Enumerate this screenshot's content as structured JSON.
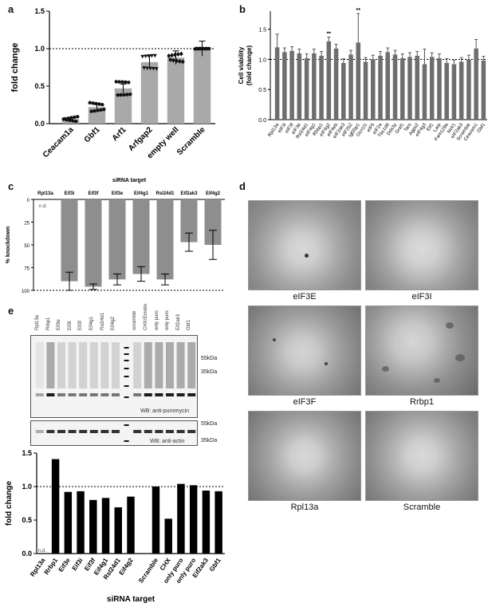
{
  "panels": {
    "a": {
      "letter": "a",
      "ylabel": "fold change",
      "ylim": [
        0,
        1.5
      ],
      "yticks": [
        "0.0",
        "0.5",
        "1.0",
        "1.5"
      ],
      "categories": [
        "Ceacam1a",
        "Gbf1",
        "Arf1",
        "Arfgap2",
        "empty well",
        "Scramble"
      ],
      "values": [
        0.06,
        0.22,
        0.47,
        0.82,
        0.88,
        1.0
      ]
    },
    "b": {
      "letter": "b",
      "ylabel1": "Cell viability",
      "ylabel2": "(fold change)",
      "ylim": [
        0,
        1.8
      ],
      "yticks": [
        "0.0",
        "0.5",
        "1.0",
        "1.5"
      ],
      "categories": [
        "Rpl13a",
        "eIF3i",
        "eIF3f",
        "eIF3e",
        "Rsl24d1",
        "eIF4g1",
        "Rbbp1",
        "eIF4g2",
        "eIF4eb",
        "eIF2ak3",
        "eIF2b2",
        "Igf2bp1",
        "Gcn1l1",
        "eIF5",
        "eIF2a",
        "Tbc1d8",
        "Ddx3y",
        "Grsf1",
        "Tars",
        "Agps2",
        "eIF4g3",
        "Eif1",
        "Larp",
        "Fam129a",
        "Nck1",
        "eIF2ak3",
        "Scramble",
        "Ceacam1",
        "Gbf1"
      ],
      "values": [
        1.2,
        1.12,
        1.14,
        1.1,
        1.02,
        1.1,
        1.06,
        1.3,
        1.18,
        0.94,
        1.08,
        1.28,
        0.96,
        1.0,
        1.06,
        1.12,
        1.08,
        1.02,
        1.04,
        1.06,
        0.92,
        1.04,
        1.02,
        0.94,
        0.92,
        0.96,
        1.0,
        1.18,
        0.98
      ],
      "stars": "**"
    },
    "c": {
      "letter": "c",
      "title": "siRNA target",
      "ylabel": "% knockdown",
      "yticks": [
        "0",
        "25",
        "50",
        "75",
        "100"
      ],
      "categories": [
        "Rpl13a",
        "Eif3i",
        "Eif3f",
        "Eif3e",
        "Eif4g1",
        "Rsl24d1",
        "Eif2ak3",
        "Eif4g2"
      ],
      "values": [
        0,
        90,
        96,
        88,
        82,
        88,
        47,
        50
      ],
      "nd": "n.d."
    },
    "d": {
      "letter": "d",
      "captions": [
        "eIF3E",
        "eIF3I",
        "eIF3F",
        "Rrbp1",
        "Rpl13a",
        "Scramble"
      ]
    },
    "e": {
      "letter": "e",
      "lanes": [
        "Rpl13a",
        "Rrbp1",
        "Eif3e",
        "Eif3i",
        "Eif3f",
        "Eif4g1",
        "Rsl24d1",
        "Eif4g2",
        "",
        "scramble",
        "CHX/Emetin",
        "only puro",
        "only puro",
        "Eif2ak3",
        "Gbf1"
      ],
      "blot1_label": "WB: anti-puromycin",
      "blot2_label": "WB: anti-actin",
      "kda": [
        "55kDa",
        "35kDa",
        "55kDa",
        "35kDa"
      ],
      "ylabel": "fold change",
      "xlabel": "siRNA target",
      "yticks": [
        "0.0",
        "0.5",
        "1.0",
        "1.5"
      ],
      "categories": [
        "Rpl13a",
        "Rrbp1",
        "Eif3e",
        "Eif3i",
        "Eif3f",
        "Eif4g1",
        "Rsl24d1",
        "Eif4g2",
        "Scramble",
        "CHX",
        "only puro",
        "only puro",
        "Eif2ak3",
        "Gbf1"
      ],
      "values": [
        0,
        1.41,
        0.92,
        0.93,
        0.8,
        0.83,
        0.69,
        0.85,
        1.0,
        0.52,
        1.04,
        1.02,
        0.94,
        0.93
      ],
      "nd": "n.d."
    }
  },
  "chart_data": [
    {
      "type": "bar",
      "categories": [
        "Ceacam1a",
        "Gbf1",
        "Arf1",
        "Arfgap2",
        "empty well",
        "Scramble"
      ],
      "values": [
        0.06,
        0.22,
        0.47,
        0.82,
        0.88,
        1.0
      ],
      "ylabel": "fold change",
      "ylim": [
        0,
        1.5
      ]
    },
    {
      "type": "bar",
      "ylabel": "Cell viability (fold change)",
      "ylim": [
        0,
        1.8
      ]
    },
    {
      "type": "bar",
      "title": "siRNA target",
      "ylabel": "% knockdown",
      "ylim": [
        0,
        100
      ]
    },
    {
      "type": "bar",
      "ylabel": "fold change",
      "xlabel": "siRNA target",
      "ylim": [
        0,
        1.5
      ]
    }
  ]
}
